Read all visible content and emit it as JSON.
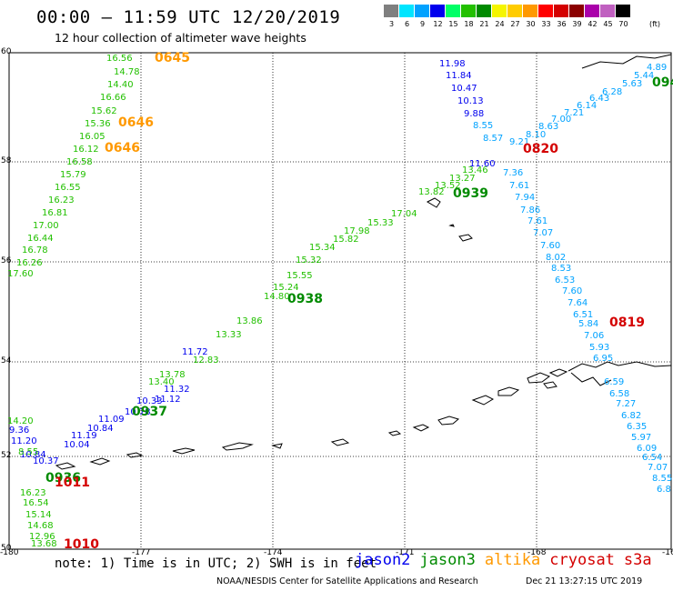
{
  "header": {
    "title": "00:00 – 11:59 UTC 12/20/2019",
    "subtitle": "12 hour collection of altimeter wave heights"
  },
  "scale": {
    "unit": "(ft)",
    "bins": [
      {
        "label": "3",
        "color": "#7f7f7f"
      },
      {
        "label": "6",
        "color": "#00e5ff"
      },
      {
        "label": "9",
        "color": "#00a2ff"
      },
      {
        "label": "12",
        "color": "#0000ee"
      },
      {
        "label": "15",
        "color": "#00ff66"
      },
      {
        "label": "18",
        "color": "#22c000"
      },
      {
        "label": "21",
        "color": "#008a00"
      },
      {
        "label": "24",
        "color": "#f5f500"
      },
      {
        "label": "27",
        "color": "#ffcc00"
      },
      {
        "label": "30",
        "color": "#ff9900"
      },
      {
        "label": "33",
        "color": "#ff0000"
      },
      {
        "label": "36",
        "color": "#d40000"
      },
      {
        "label": "39",
        "color": "#8b0000"
      },
      {
        "label": "42",
        "color": "#aa00aa"
      },
      {
        "label": "45",
        "color": "#c060c0"
      },
      {
        "label": "70",
        "color": "#000000"
      }
    ]
  },
  "axes": {
    "lat_labels": [
      "60",
      "58",
      "56",
      "54",
      "52",
      "50"
    ],
    "lon_labels": [
      "-180",
      "-177",
      "-174",
      "-171",
      "-168",
      "-16"
    ]
  },
  "tracks": [
    {
      "name": "altika-a",
      "color": "#ff9900",
      "times": [
        "0645",
        "0646",
        "0646"
      ]
    },
    {
      "name": "jason3-a",
      "color": "#22c000",
      "values": [
        "16.56",
        "14.78",
        "14.40",
        "16.66",
        "15.62",
        "15.36",
        "16.05",
        "16.12",
        "16.58",
        "15.79",
        "16.55",
        "16.23",
        "16.81",
        "17.00",
        "16.44",
        "16.78",
        "16.26",
        "17.60"
      ]
    },
    {
      "name": "jason2-a",
      "color": "#0000ee",
      "values": [
        "11.98",
        "11.84",
        "10.47",
        "10.13",
        "9.88"
      ]
    },
    {
      "name": "s3a-a",
      "color": "#00a2ff",
      "values": [
        "8.55",
        "8.57",
        "9.21",
        "8.10",
        "8.63",
        "7.00",
        "7.21",
        "6.14",
        "6.43",
        "6.28",
        "5.63",
        "5.44",
        "4.89",
        "7.36",
        "7.61",
        "7.94",
        "7.86",
        "7.61",
        "7.07",
        "7.60",
        "8.02",
        "8.53",
        "6.53",
        "7.60",
        "7.64",
        "6.51",
        "5.84",
        "7.06",
        "5.93",
        "6.95",
        "6.59",
        "6.58",
        "7.27",
        "6.82",
        "6.35",
        "5.97",
        "6.09",
        "6.54",
        "7.07",
        "8.55",
        "6.8"
      ]
    },
    {
      "name": "jason2-b",
      "color": "#0000ee",
      "values": [
        "11.60",
        "11.72",
        "11.32",
        "11.12",
        "10.33",
        "10.18",
        "11.09",
        "10.84",
        "11.19",
        "10.04",
        "9.36",
        "11.20",
        "10.84",
        "10.37"
      ]
    },
    {
      "name": "jason3-b",
      "color": "#22c000",
      "values": [
        "13.46",
        "13.27",
        "13.52",
        "13.82",
        "17.04",
        "15.33",
        "17.98",
        "15.82",
        "15.34",
        "15.32",
        "15.55",
        "15.24",
        "14.80",
        "13.86",
        "13.33",
        "12.83",
        "13.78",
        "13.40",
        "14.20",
        "8.55",
        "16.23",
        "16.54",
        "15.14",
        "14.68",
        "12.96",
        "13.68"
      ]
    },
    {
      "name": "times",
      "color": "#008a00",
      "times": [
        "0939",
        "0938",
        "0937",
        "0936",
        "094"
      ]
    },
    {
      "name": "cryosat",
      "color": "#d40000",
      "times": [
        "0820",
        "0819",
        "1011",
        "1010"
      ]
    }
  ],
  "footer": {
    "note": "note: 1) Time is in UTC; 2) SWH is in feet",
    "legend": [
      {
        "label": "jason2",
        "color": "#0000ee"
      },
      {
        "label": "jason3",
        "color": "#008a00"
      },
      {
        "label": "altika",
        "color": "#ff9900"
      },
      {
        "label": "cryosat",
        "color": "#d40000"
      },
      {
        "label": "s3a",
        "color": "#d40000"
      }
    ],
    "credit": "NOAA/NESDIS Center for Satellite Applications and Research",
    "timestamp": "Dec 21 13:27:15 UTC 2019"
  }
}
